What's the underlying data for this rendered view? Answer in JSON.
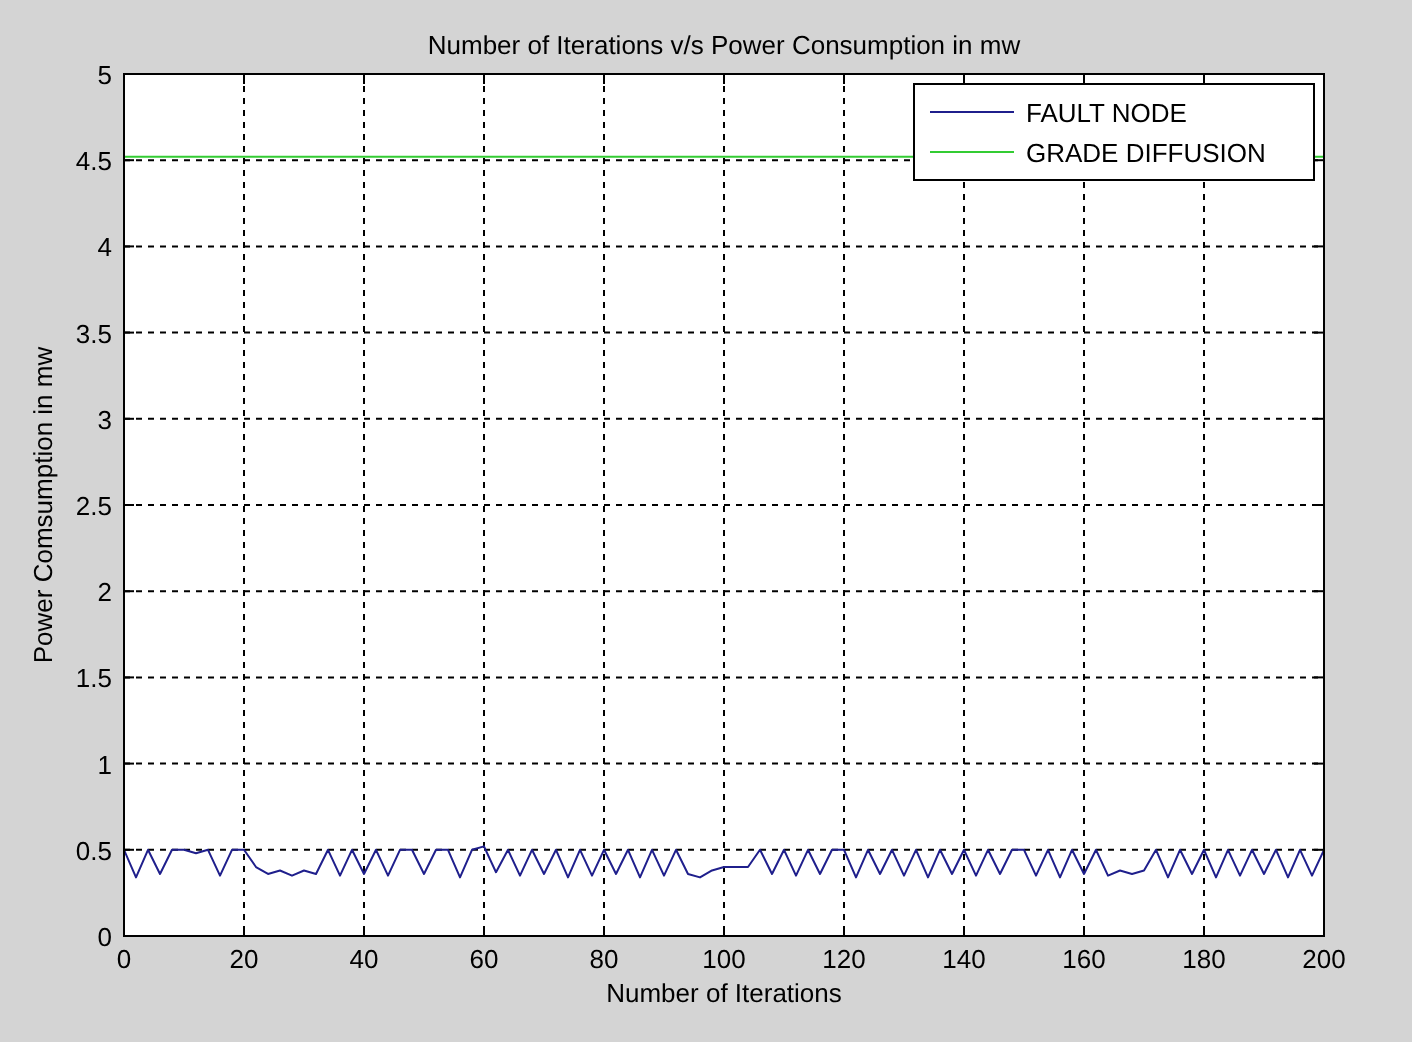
{
  "chart_data": {
    "type": "line",
    "title": "Number of Iterations v/s Power Consumption in mw",
    "xlabel": "Number of Iterations",
    "ylabel": "Power Comsumption in mw",
    "xlim": [
      0,
      200
    ],
    "ylim": [
      0,
      5
    ],
    "xticks": [
      0,
      20,
      40,
      60,
      80,
      100,
      120,
      140,
      160,
      180,
      200
    ],
    "yticks": [
      0,
      0.5,
      1,
      1.5,
      2,
      2.5,
      3,
      3.5,
      4,
      4.5,
      5
    ],
    "grid": true,
    "legend": "top right",
    "line_style": "solid",
    "series": [
      {
        "name": "FAULT NODE",
        "color": "#1f1f8c",
        "x": [
          0,
          2,
          4,
          6,
          8,
          10,
          12,
          14,
          16,
          18,
          20,
          22,
          24,
          26,
          28,
          30,
          32,
          34,
          36,
          38,
          40,
          42,
          44,
          46,
          48,
          50,
          52,
          54,
          56,
          58,
          60,
          62,
          64,
          66,
          68,
          70,
          72,
          74,
          76,
          78,
          80,
          82,
          84,
          86,
          88,
          90,
          92,
          94,
          96,
          98,
          100,
          102,
          104,
          106,
          108,
          110,
          112,
          114,
          116,
          118,
          120,
          122,
          124,
          126,
          128,
          130,
          132,
          134,
          136,
          138,
          140,
          142,
          144,
          146,
          148,
          150,
          152,
          154,
          156,
          158,
          160,
          162,
          164,
          166,
          168,
          170,
          172,
          174,
          176,
          178,
          180,
          182,
          184,
          186,
          188,
          190,
          192,
          194,
          196,
          198,
          200
        ],
        "values": [
          0.5,
          0.34,
          0.5,
          0.36,
          0.5,
          0.5,
          0.48,
          0.5,
          0.35,
          0.5,
          0.5,
          0.4,
          0.36,
          0.38,
          0.35,
          0.38,
          0.36,
          0.5,
          0.35,
          0.5,
          0.36,
          0.5,
          0.35,
          0.5,
          0.5,
          0.36,
          0.5,
          0.5,
          0.34,
          0.5,
          0.52,
          0.37,
          0.5,
          0.35,
          0.5,
          0.36,
          0.5,
          0.34,
          0.5,
          0.35,
          0.5,
          0.36,
          0.5,
          0.34,
          0.5,
          0.35,
          0.5,
          0.36,
          0.34,
          0.38,
          0.4,
          0.4,
          0.4,
          0.5,
          0.36,
          0.5,
          0.35,
          0.5,
          0.36,
          0.5,
          0.5,
          0.34,
          0.5,
          0.36,
          0.5,
          0.35,
          0.5,
          0.34,
          0.5,
          0.36,
          0.5,
          0.35,
          0.5,
          0.36,
          0.5,
          0.5,
          0.35,
          0.5,
          0.34,
          0.5,
          0.36,
          0.5,
          0.35,
          0.38,
          0.36,
          0.38,
          0.5,
          0.34,
          0.5,
          0.36,
          0.5,
          0.34,
          0.5,
          0.35,
          0.5,
          0.36,
          0.5,
          0.34,
          0.5,
          0.35,
          0.5
        ]
      },
      {
        "name": "GRADE DIFFUSION",
        "color": "#33cc33",
        "x": [
          0,
          200
        ],
        "values": [
          4.52,
          4.52
        ]
      }
    ]
  }
}
